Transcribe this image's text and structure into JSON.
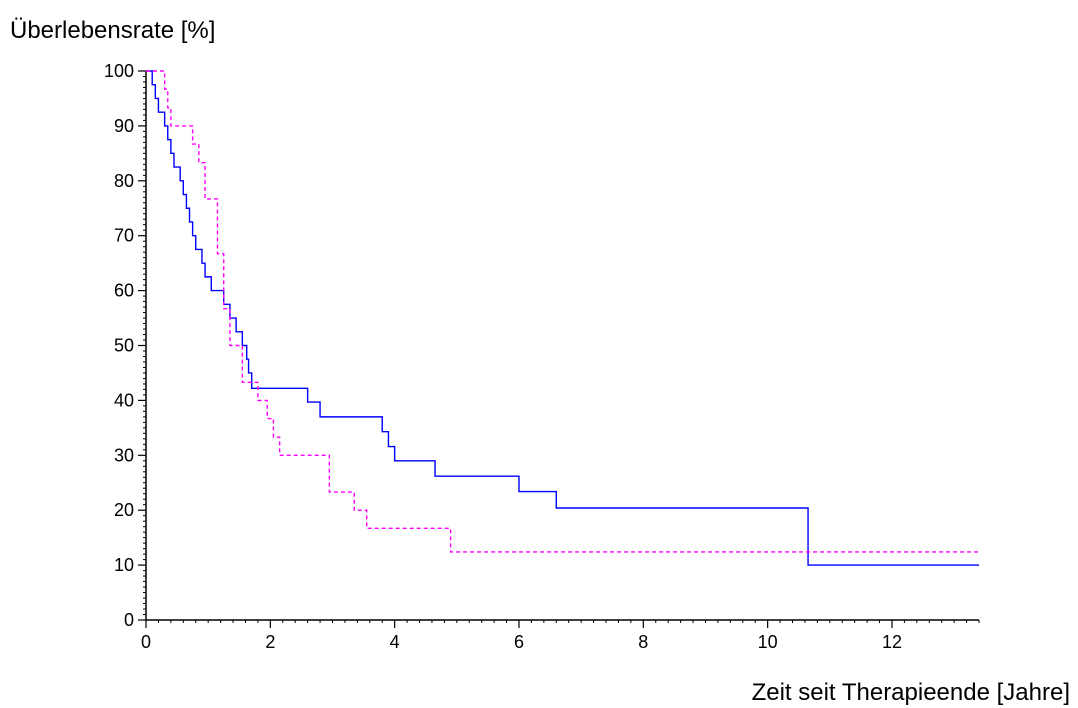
{
  "chart_data": {
    "type": "line",
    "title": "",
    "xlabel": "Zeit seit Therapieende [Jahre]",
    "ylabel": "Überlebensrate [%]",
    "xlim": [
      0,
      13.4
    ],
    "ylim": [
      0,
      100
    ],
    "x_ticks": [
      0,
      2,
      4,
      6,
      8,
      10,
      12
    ],
    "x_tick_labels": [
      "0",
      "2",
      "4",
      "6",
      "8",
      "10",
      "12"
    ],
    "x_minor_step": 0.2,
    "y_ticks": [
      0,
      10,
      20,
      30,
      40,
      50,
      60,
      70,
      80,
      90,
      100
    ],
    "y_tick_labels": [
      "0",
      "10",
      "20",
      "30",
      "40",
      "50",
      "60",
      "70",
      "80",
      "90",
      "100"
    ],
    "y_minor_step": 1,
    "grid": false,
    "legend": "none",
    "series": [
      {
        "style": "solid",
        "color": "#0000ff",
        "x": [
          0,
          0.1,
          0.15,
          0.2,
          0.3,
          0.35,
          0.4,
          0.45,
          0.55,
          0.6,
          0.65,
          0.7,
          0.75,
          0.8,
          0.9,
          0.95,
          1.05,
          1.1,
          1.25,
          1.35,
          1.45,
          1.55,
          1.62,
          1.65,
          1.7,
          2.6,
          2.8,
          3.8,
          3.9,
          4.0,
          4.65,
          6.0,
          6.6,
          10.65,
          13.4
        ],
        "y": [
          100,
          97.5,
          95,
          92.5,
          90,
          87.5,
          85,
          82.5,
          80,
          77.5,
          75,
          72.5,
          70,
          67.5,
          65,
          62.5,
          60,
          60,
          57.5,
          55,
          52.5,
          50,
          47.5,
          45,
          42.2,
          39.7,
          37,
          34.3,
          31.6,
          29,
          26.2,
          23.4,
          20.4,
          10,
          10
        ]
      },
      {
        "style": "dashed",
        "color": "#ff00ff",
        "x": [
          0,
          0.2,
          0.3,
          0.35,
          0.4,
          0.6,
          0.75,
          0.85,
          0.95,
          1.15,
          1.25,
          1.35,
          1.55,
          1.6,
          1.8,
          1.95,
          2.05,
          2.15,
          2.95,
          3.35,
          3.55,
          3.6,
          4.9,
          13.4
        ],
        "y": [
          100,
          100,
          96.7,
          93.3,
          90,
          90,
          86.7,
          83.3,
          76.7,
          66.7,
          56.7,
          50,
          43.3,
          43.3,
          40,
          36.7,
          33.3,
          30,
          23.3,
          20,
          16.7,
          16.7,
          12.4,
          12.4
        ]
      }
    ]
  }
}
